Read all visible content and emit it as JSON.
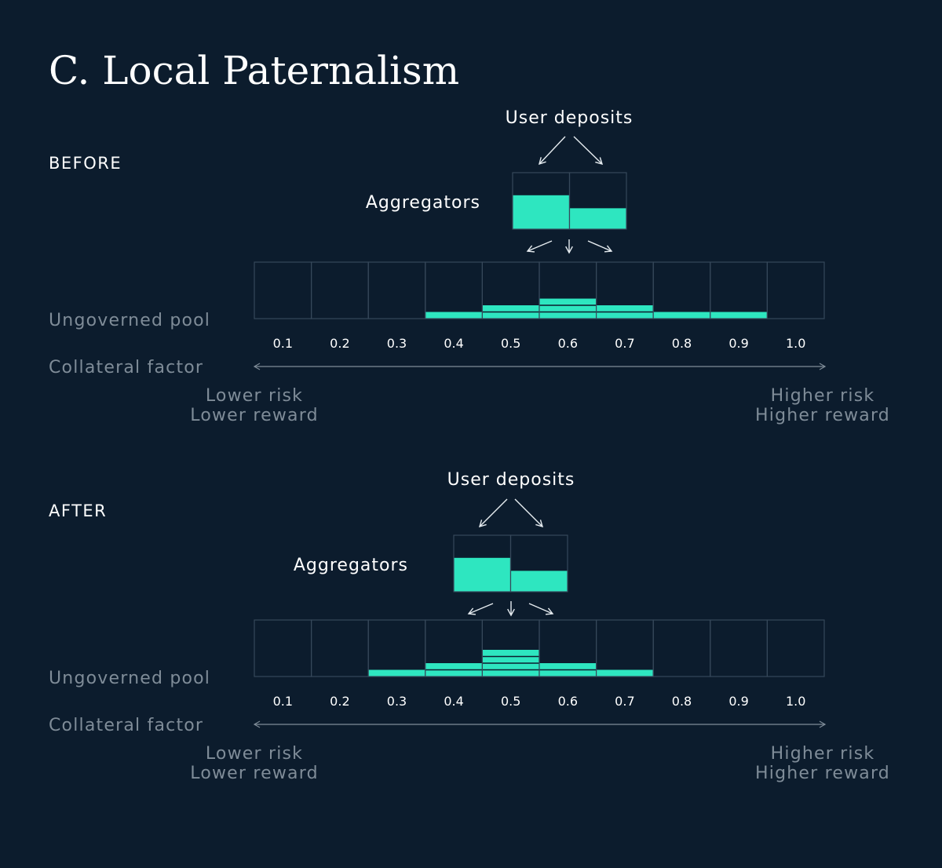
{
  "title": "C. Local Paternalism",
  "colors": {
    "background": "#0c1c2d",
    "accent": "#2ee6c0",
    "grid": "#36485a",
    "muted": "#7f8c98"
  },
  "panels": [
    {
      "label": "BEFORE",
      "deposits_label": "User deposits",
      "aggregators_label": "Aggregators",
      "pool_label": "Ungoverned pool",
      "factor_label": "Collateral factor",
      "aggregator_levels": [
        0.6,
        0.37
      ],
      "bins": [
        "0.1",
        "0.2",
        "0.3",
        "0.4",
        "0.5",
        "0.6",
        "0.7",
        "0.8",
        "0.9",
        "1.0"
      ],
      "pool_stack_counts": [
        0,
        0,
        0,
        1,
        2,
        3,
        2,
        1,
        1,
        0
      ],
      "low_end": {
        "line1": "Lower risk",
        "line2": "Lower reward"
      },
      "high_end": {
        "line1": "Higher risk",
        "line2": "Higher reward"
      }
    },
    {
      "label": "AFTER",
      "deposits_label": "User deposits",
      "aggregators_label": "Aggregators",
      "pool_label": "Ungoverned pool",
      "factor_label": "Collateral factor",
      "aggregator_levels": [
        0.6,
        0.37
      ],
      "bins": [
        "0.1",
        "0.2",
        "0.3",
        "0.4",
        "0.5",
        "0.6",
        "0.7",
        "0.8",
        "0.9",
        "1.0"
      ],
      "pool_stack_counts": [
        0,
        0,
        1,
        2,
        4,
        2,
        1,
        0,
        0,
        0
      ],
      "low_end": {
        "line1": "Lower risk",
        "line2": "Lower reward"
      },
      "high_end": {
        "line1": "Higher risk",
        "line2": "Higher reward"
      }
    }
  ]
}
